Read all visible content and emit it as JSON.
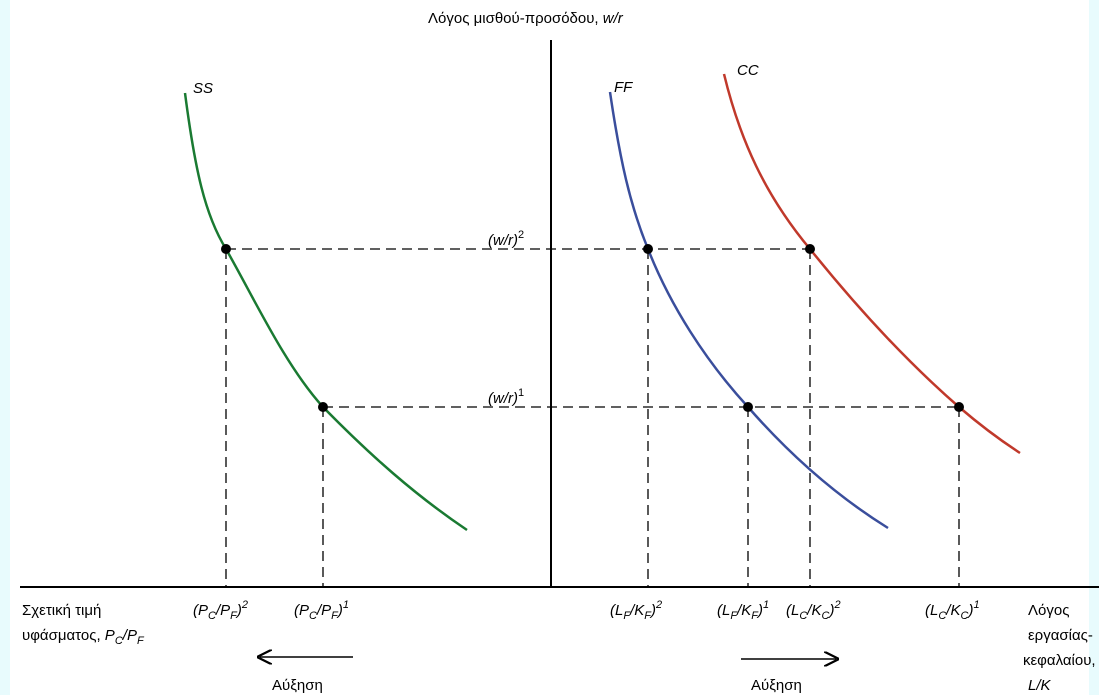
{
  "colors": {
    "background": "#e8fbfd",
    "ss_curve": "#1a7a32",
    "ff_curve": "#3a4e9c",
    "cc_curve": "#c0392b",
    "axis": "#000000",
    "guide": "#000000"
  },
  "labels": {
    "y_axis_title_prefix": "Λόγος μισθού-προσόδου, ",
    "y_axis_title_var": "w/r",
    "ss": "SS",
    "ff": "FF",
    "cc": "CC",
    "wr2": "(w/r)",
    "wr2_sup": "2",
    "wr1": "(w/r)",
    "wr1_sup": "1",
    "left_title_line1": "Σχετική τιμή",
    "left_title_line2": "υφάσματος, ",
    "left_title_var_P1": "P",
    "left_title_sub_C": "C",
    "left_title_slash": "/",
    "left_title_var_P2": "P",
    "left_title_sub_F": "F",
    "right_title_line1": "Λόγος",
    "right_title_line2": "εργασίας-",
    "right_title_line3": "κεφαλαίου,",
    "right_title_line4": "L/K",
    "pc_pf_2": {
      "open": "(P",
      "sub1": "C",
      "mid": "/P",
      "sub2": "F",
      "close": ")",
      "sup": "2"
    },
    "pc_pf_1": {
      "open": "(P",
      "sub1": "C",
      "mid": "/P",
      "sub2": "F",
      "close": ")",
      "sup": "1"
    },
    "lf_kf_2": {
      "open": "(L",
      "sub1": "F",
      "mid": "/K",
      "sub2": "F",
      "close": ")",
      "sup": "2"
    },
    "lf_kf_1": {
      "open": "(L",
      "sub1": "F",
      "mid": "/K",
      "sub2": "F",
      "close": ")",
      "sup": "1"
    },
    "lc_kc_2": {
      "open": "(L",
      "sub1": "C",
      "mid": "/K",
      "sub2": "C",
      "close": ")",
      "sup": "2"
    },
    "lc_kc_1": {
      "open": "(L",
      "sub1": "C",
      "mid": "/K",
      "sub2": "C",
      "close": ")",
      "sup": "1"
    },
    "increase_left": "Αύξηση",
    "increase_right": "Αύξηση"
  }
}
